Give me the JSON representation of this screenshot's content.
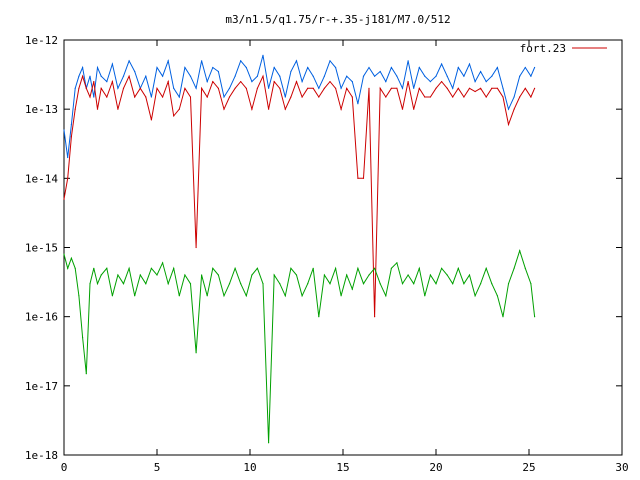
{
  "chart_data": {
    "type": "line",
    "title": "m3/n1.5/q1.75/r-+.35-j181/M7.0/512",
    "xlabel": "",
    "ylabel": "",
    "x_scale": "linear",
    "y_scale": "log",
    "xlim": [
      0,
      30
    ],
    "ylim": [
      1e-18,
      1e-12
    ],
    "x_ticks": [
      0,
      5,
      10,
      15,
      20,
      25,
      30
    ],
    "x_tick_labels": [
      "0",
      "5",
      "10",
      "15",
      "20",
      "25",
      "30"
    ],
    "y_ticks": [
      1e-18,
      1e-17,
      1e-16,
      1e-15,
      1e-14,
      1e-13,
      1e-12
    ],
    "y_tick_labels": [
      "1e-18",
      "1e-17",
      "1e-16",
      "1e-15",
      "1e-14",
      "1e-13",
      "1e-12"
    ],
    "grid": false,
    "legend": {
      "position": "top-right",
      "entries": [
        "fort.23"
      ]
    },
    "series": [
      {
        "name": "",
        "color": "#0060e0",
        "x": [
          0.0,
          0.2,
          0.4,
          0.6,
          0.8,
          1.0,
          1.2,
          1.4,
          1.6,
          1.8,
          2.0,
          2.3,
          2.6,
          2.9,
          3.2,
          3.5,
          3.8,
          4.1,
          4.4,
          4.7,
          5.0,
          5.3,
          5.6,
          5.9,
          6.2,
          6.5,
          6.8,
          7.1,
          7.4,
          7.7,
          8.0,
          8.3,
          8.6,
          8.9,
          9.2,
          9.5,
          9.8,
          10.1,
          10.4,
          10.7,
          11.0,
          11.3,
          11.6,
          11.9,
          12.2,
          12.5,
          12.8,
          13.1,
          13.4,
          13.7,
          14.0,
          14.3,
          14.6,
          14.9,
          15.2,
          15.5,
          15.8,
          16.1,
          16.4,
          16.7,
          17.0,
          17.3,
          17.6,
          17.9,
          18.2,
          18.5,
          18.8,
          19.1,
          19.4,
          19.7,
          20.0,
          20.3,
          20.6,
          20.9,
          21.2,
          21.5,
          21.8,
          22.1,
          22.4,
          22.7,
          23.0,
          23.3,
          23.6,
          23.9,
          24.2,
          24.5,
          24.8,
          25.1,
          25.3
        ],
        "y": [
          5e-14,
          2e-14,
          6e-14,
          2e-13,
          3e-13,
          4e-13,
          2e-13,
          3e-13,
          1.5e-13,
          4e-13,
          3e-13,
          2.5e-13,
          4.5e-13,
          2e-13,
          3e-13,
          5e-13,
          3.5e-13,
          2e-13,
          3e-13,
          1.5e-13,
          4e-13,
          3e-13,
          5e-13,
          2e-13,
          1.5e-13,
          4e-13,
          3e-13,
          2e-13,
          5e-13,
          2.5e-13,
          4e-13,
          3.5e-13,
          1.5e-13,
          2e-13,
          3e-13,
          5e-13,
          4e-13,
          2.5e-13,
          3e-13,
          6e-13,
          2e-13,
          4e-13,
          3e-13,
          1.5e-13,
          3.5e-13,
          5e-13,
          2.5e-13,
          4e-13,
          3e-13,
          2e-13,
          3e-13,
          5e-13,
          4e-13,
          2e-13,
          3e-13,
          2.5e-13,
          1.2e-13,
          3e-13,
          4e-13,
          3e-13,
          3.5e-13,
          2.5e-13,
          4e-13,
          3e-13,
          2e-13,
          5e-13,
          2e-13,
          4e-13,
          3e-13,
          2.5e-13,
          3e-13,
          4.5e-13,
          3e-13,
          2e-13,
          4e-13,
          3e-13,
          4.5e-13,
          2.5e-13,
          3.5e-13,
          2.5e-13,
          3e-13,
          4e-13,
          2e-13,
          1e-13,
          1.5e-13,
          3e-13,
          4e-13,
          3e-13,
          4e-13
        ]
      },
      {
        "name": "fort.23",
        "color": "#cc0000",
        "x": [
          0.0,
          0.2,
          0.4,
          0.6,
          0.8,
          1.0,
          1.2,
          1.4,
          1.6,
          1.8,
          2.0,
          2.3,
          2.6,
          2.9,
          3.2,
          3.5,
          3.8,
          4.1,
          4.4,
          4.7,
          5.0,
          5.3,
          5.6,
          5.9,
          6.2,
          6.5,
          6.8,
          7.1,
          7.4,
          7.7,
          8.0,
          8.3,
          8.6,
          8.9,
          9.2,
          9.5,
          9.8,
          10.1,
          10.4,
          10.7,
          11.0,
          11.3,
          11.6,
          11.9,
          12.2,
          12.5,
          12.8,
          13.1,
          13.4,
          13.7,
          14.0,
          14.3,
          14.6,
          14.9,
          15.2,
          15.5,
          15.8,
          16.1,
          16.4,
          16.7,
          17.0,
          17.3,
          17.6,
          17.9,
          18.2,
          18.5,
          18.8,
          19.1,
          19.4,
          19.7,
          20.0,
          20.3,
          20.6,
          20.9,
          21.2,
          21.5,
          21.8,
          22.1,
          22.4,
          22.7,
          23.0,
          23.3,
          23.6,
          23.9,
          24.2,
          24.5,
          24.8,
          25.1,
          25.3
        ],
        "y": [
          5e-15,
          1e-14,
          4e-14,
          1e-13,
          2e-13,
          3e-13,
          2e-13,
          1.5e-13,
          2.5e-13,
          1e-13,
          2e-13,
          1.5e-13,
          2.5e-13,
          1e-13,
          2e-13,
          3e-13,
          1.5e-13,
          2e-13,
          1.5e-13,
          7e-14,
          2e-13,
          1.5e-13,
          2.5e-13,
          8e-14,
          1e-13,
          2e-13,
          1.5e-13,
          1e-15,
          2e-13,
          1.5e-13,
          2.5e-13,
          2e-13,
          1e-13,
          1.5e-13,
          2e-13,
          2.5e-13,
          2e-13,
          1e-13,
          2e-13,
          3e-13,
          1e-13,
          2.5e-13,
          2e-13,
          1e-13,
          1.5e-13,
          2.5e-13,
          1.5e-13,
          2e-13,
          2e-13,
          1.5e-13,
          2e-13,
          2.5e-13,
          2e-13,
          1e-13,
          2e-13,
          1.5e-13,
          1e-14,
          1e-14,
          2e-13,
          1e-16,
          2e-13,
          1.5e-13,
          2e-13,
          2e-13,
          1e-13,
          2.5e-13,
          1e-13,
          2e-13,
          1.5e-13,
          1.5e-13,
          2e-13,
          2.5e-13,
          2e-13,
          1.5e-13,
          2e-13,
          1.5e-13,
          2e-13,
          1.8e-13,
          2e-13,
          1.5e-13,
          2e-13,
          2e-13,
          1.5e-13,
          6e-14,
          1e-13,
          1.5e-13,
          2e-13,
          1.5e-13,
          2e-13
        ]
      },
      {
        "name": "",
        "color": "#00a000",
        "x": [
          0.0,
          0.2,
          0.4,
          0.6,
          0.8,
          1.0,
          1.2,
          1.4,
          1.6,
          1.8,
          2.0,
          2.3,
          2.6,
          2.9,
          3.2,
          3.5,
          3.8,
          4.1,
          4.4,
          4.7,
          5.0,
          5.3,
          5.6,
          5.9,
          6.2,
          6.5,
          6.8,
          7.1,
          7.4,
          7.7,
          8.0,
          8.3,
          8.6,
          8.9,
          9.2,
          9.5,
          9.8,
          10.1,
          10.4,
          10.7,
          11.0,
          11.3,
          11.6,
          11.9,
          12.2,
          12.5,
          12.8,
          13.1,
          13.4,
          13.7,
          14.0,
          14.3,
          14.6,
          14.9,
          15.2,
          15.5,
          15.8,
          16.1,
          16.4,
          16.7,
          17.0,
          17.3,
          17.6,
          17.9,
          18.2,
          18.5,
          18.8,
          19.1,
          19.4,
          19.7,
          20.0,
          20.3,
          20.6,
          20.9,
          21.2,
          21.5,
          21.8,
          22.1,
          22.4,
          22.7,
          23.0,
          23.3,
          23.6,
          23.9,
          24.2,
          24.5,
          24.8,
          25.1,
          25.3
        ],
        "y": [
          8e-16,
          5e-16,
          7e-16,
          5e-16,
          2e-16,
          5e-17,
          1.5e-17,
          3e-16,
          5e-16,
          3e-16,
          4e-16,
          5e-16,
          2e-16,
          4e-16,
          3e-16,
          5e-16,
          2e-16,
          4e-16,
          3e-16,
          5e-16,
          4e-16,
          6e-16,
          3e-16,
          5e-16,
          2e-16,
          4e-16,
          3e-16,
          3e-17,
          4e-16,
          2e-16,
          5e-16,
          4e-16,
          2e-16,
          3e-16,
          5e-16,
          3e-16,
          2e-16,
          4e-16,
          5e-16,
          3e-16,
          1.5e-18,
          4e-16,
          3e-16,
          2e-16,
          5e-16,
          4e-16,
          2e-16,
          3e-16,
          5e-16,
          1e-16,
          4e-16,
          3e-16,
          5e-16,
          2e-16,
          4e-16,
          2.5e-16,
          5e-16,
          3e-16,
          4e-16,
          5e-16,
          3e-16,
          2e-16,
          5e-16,
          6e-16,
          3e-16,
          4e-16,
          3e-16,
          5e-16,
          2e-16,
          4e-16,
          3e-16,
          5e-16,
          4e-16,
          3e-16,
          5e-16,
          3e-16,
          4e-16,
          2e-16,
          3e-16,
          5e-16,
          3e-16,
          2e-16,
          1e-16,
          3e-16,
          5e-16,
          9e-16,
          5e-16,
          3e-16,
          1e-16
        ]
      }
    ]
  }
}
